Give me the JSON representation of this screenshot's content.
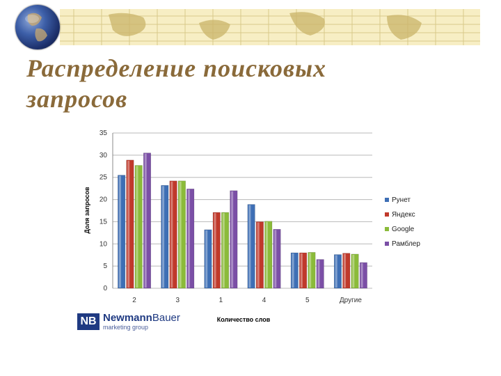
{
  "slide": {
    "title_line1": "Распределение поисковых",
    "title_line2": "запросов"
  },
  "logo": {
    "mark": "NB",
    "name_part1": "Newmann",
    "name_part2": "Bauer",
    "sub": "marketing group"
  },
  "colors": {
    "title": "#8a6a3a",
    "banner": "#f7eec4",
    "series": [
      "#3e6fb5",
      "#c0392b",
      "#8bbb3a",
      "#7b4fa6"
    ]
  },
  "chart_data": {
    "type": "bar",
    "xlabel": "Количество слов",
    "ylabel": "Доля запросов",
    "ylim": [
      0,
      35
    ],
    "yticks": [
      0,
      5,
      10,
      15,
      20,
      25,
      30,
      35
    ],
    "grid": true,
    "legend_position": "right",
    "categories": [
      "2",
      "3",
      "1",
      "4",
      "5",
      "Другие"
    ],
    "series": [
      {
        "name": "Рунет",
        "values": [
          25.5,
          23.2,
          13.2,
          18.9,
          8.0,
          7.6
        ]
      },
      {
        "name": "Яндекс",
        "values": [
          28.9,
          24.2,
          17.1,
          15.0,
          8.0,
          7.9
        ]
      },
      {
        "name": "Google",
        "values": [
          27.7,
          24.2,
          17.1,
          15.1,
          8.1,
          7.7
        ]
      },
      {
        "name": "Рамблер",
        "values": [
          30.5,
          22.4,
          22.0,
          13.3,
          6.5,
          5.8
        ]
      }
    ]
  }
}
